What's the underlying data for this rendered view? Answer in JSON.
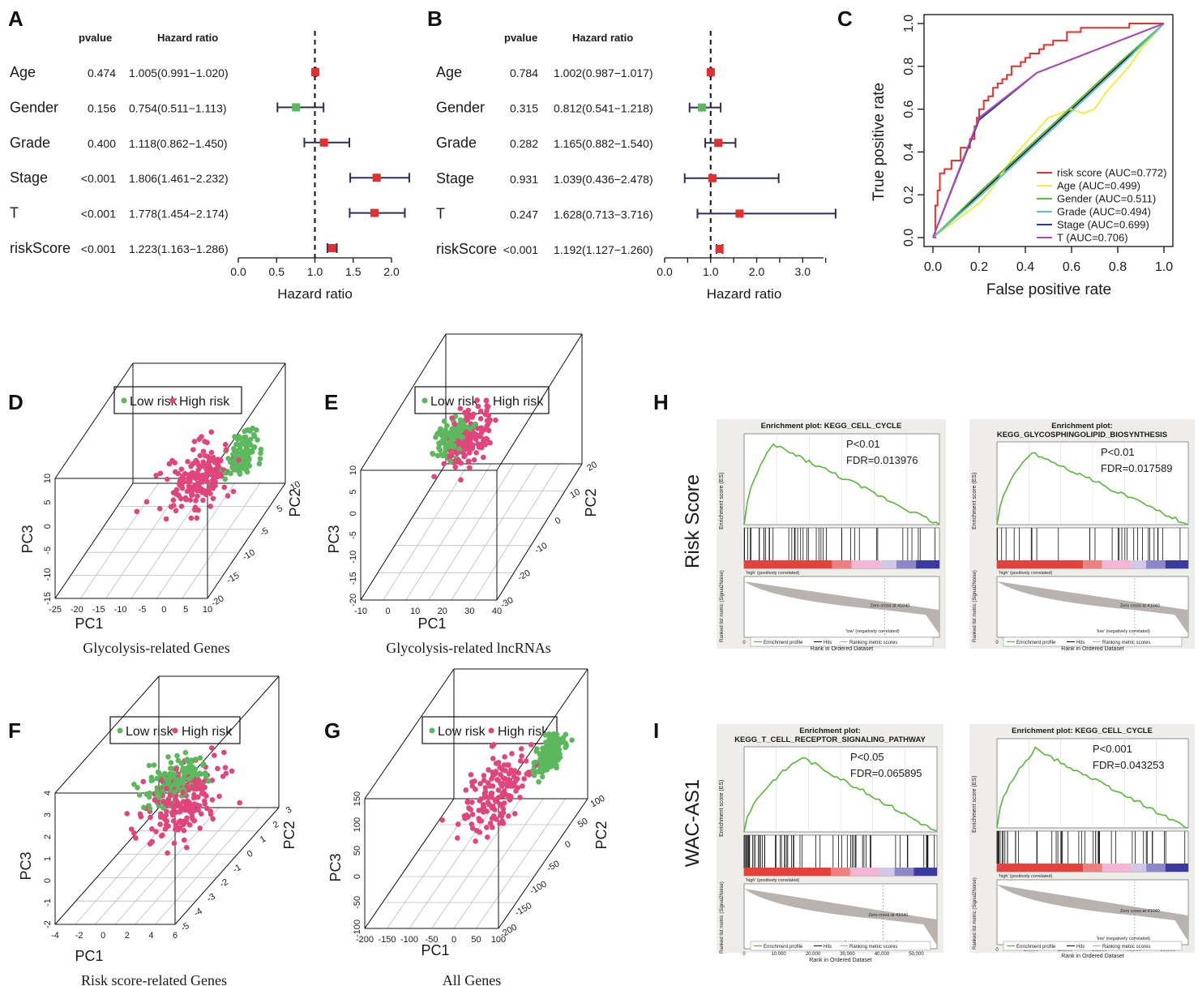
{
  "panel_letters": {
    "A": "A",
    "B": "B",
    "C": "C",
    "D": "D",
    "E": "E",
    "F": "F",
    "G": "G",
    "H": "H",
    "I": "I"
  },
  "colors": {
    "red": "#e03030",
    "green": "#5cb85c",
    "navy": "#2e2e5e",
    "pink": "#e0457b",
    "gsea_green": "#55b935"
  },
  "chart_data": [
    {
      "id": "A",
      "type": "forest",
      "xlabel": "Hazard ratio",
      "col_pvalue": "pvalue",
      "col_hr": "Hazard ratio",
      "xlim": [
        0,
        2.0
      ],
      "ticks": [
        "0.0",
        "0.5",
        "1.0",
        "1.5",
        "2.0"
      ],
      "tick_values": [
        0,
        0.5,
        1.0,
        1.5,
        2.0
      ],
      "rows": [
        {
          "name": "Age",
          "pvalue": "0.474",
          "hr_text": "1.005(0.991−1.020)",
          "hr": 1.005,
          "lo": 0.991,
          "hi": 1.02,
          "color": "#e03030"
        },
        {
          "name": "Gender",
          "pvalue": "0.156",
          "hr_text": "0.754(0.511−1.113)",
          "hr": 0.754,
          "lo": 0.511,
          "hi": 1.113,
          "color": "#5cb85c"
        },
        {
          "name": "Grade",
          "pvalue": "0.400",
          "hr_text": "1.118(0.862−1.450)",
          "hr": 1.118,
          "lo": 0.862,
          "hi": 1.45,
          "color": "#e03030"
        },
        {
          "name": "Stage",
          "pvalue": "<0.001",
          "hr_text": "1.806(1.461−2.232)",
          "hr": 1.806,
          "lo": 1.461,
          "hi": 2.232,
          "color": "#e03030"
        },
        {
          "name": "T",
          "pvalue": "<0.001",
          "hr_text": "1.778(1.454−2.174)",
          "hr": 1.778,
          "lo": 1.454,
          "hi": 2.174,
          "color": "#e03030"
        },
        {
          "name": "riskScore",
          "pvalue": "<0.001",
          "hr_text": "1.223(1.163−1.286)",
          "hr": 1.223,
          "lo": 1.163,
          "hi": 1.286,
          "color": "#e03030"
        }
      ]
    },
    {
      "id": "B",
      "type": "forest",
      "xlabel": "Hazard ratio",
      "col_pvalue": "pvalue",
      "col_hr": "Hazard ratio",
      "xlim": [
        0,
        3.7
      ],
      "ticks": [
        "0.0",
        "1.0",
        "2.0",
        "3.0"
      ],
      "tick_values": [
        0,
        1.0,
        2.0,
        3.0
      ],
      "rows": [
        {
          "name": "Age",
          "pvalue": "0.784",
          "hr_text": "1.002(0.987−1.017)",
          "hr": 1.002,
          "lo": 0.987,
          "hi": 1.017,
          "color": "#e03030"
        },
        {
          "name": "Gender",
          "pvalue": "0.315",
          "hr_text": "0.812(0.541−1.218)",
          "hr": 0.812,
          "lo": 0.541,
          "hi": 1.218,
          "color": "#5cb85c"
        },
        {
          "name": "Grade",
          "pvalue": "0.282",
          "hr_text": "1.165(0.882−1.540)",
          "hr": 1.165,
          "lo": 0.882,
          "hi": 1.54,
          "color": "#e03030"
        },
        {
          "name": "Stage",
          "pvalue": "0.931",
          "hr_text": "1.039(0.436−2.478)",
          "hr": 1.039,
          "lo": 0.436,
          "hi": 2.478,
          "color": "#e03030"
        },
        {
          "name": "T",
          "pvalue": "0.247",
          "hr_text": "1.628(0.713−3.716)",
          "hr": 1.628,
          "lo": 0.713,
          "hi": 3.716,
          "color": "#e03030"
        },
        {
          "name": "riskScore",
          "pvalue": "<0.001",
          "hr_text": "1.192(1.127−1.260)",
          "hr": 1.192,
          "lo": 1.127,
          "hi": 1.26,
          "color": "#e03030"
        }
      ]
    },
    {
      "id": "C",
      "type": "line",
      "title": "",
      "xlabel": "False positive rate",
      "ylabel": "True positive rate",
      "xlim": [
        0,
        1
      ],
      "ylim": [
        0,
        1
      ],
      "xticks": [
        "0.0",
        "0.2",
        "0.4",
        "0.6",
        "0.8",
        "1.0"
      ],
      "yticks": [
        "0.0",
        "0.2",
        "0.4",
        "0.6",
        "0.8",
        "1.0"
      ],
      "series": [
        {
          "name": "risk score (AUC=0.772)",
          "color": "#e8302a",
          "x": [
            0,
            0.01,
            0.02,
            0.03,
            0.05,
            0.06,
            0.08,
            0.1,
            0.12,
            0.14,
            0.16,
            0.18,
            0.19,
            0.2,
            0.22,
            0.24,
            0.26,
            0.28,
            0.3,
            0.32,
            0.34,
            0.36,
            0.38,
            0.4,
            0.42,
            0.44,
            0.46,
            0.48,
            0.5,
            0.52,
            0.55,
            0.58,
            0.6,
            0.64,
            0.68,
            0.72,
            0.76,
            0.8,
            0.85,
            0.9,
            0.95,
            1.0
          ],
          "y": [
            0,
            0.15,
            0.22,
            0.3,
            0.32,
            0.32,
            0.36,
            0.36,
            0.42,
            0.42,
            0.46,
            0.52,
            0.56,
            0.6,
            0.64,
            0.66,
            0.7,
            0.72,
            0.74,
            0.76,
            0.8,
            0.8,
            0.82,
            0.84,
            0.86,
            0.86,
            0.88,
            0.9,
            0.9,
            0.92,
            0.92,
            0.96,
            0.96,
            0.98,
            0.98,
            0.98,
            0.98,
            0.98,
            1.0,
            1.0,
            1.0,
            1.0
          ]
        },
        {
          "name": "Age (AUC=0.499)",
          "color": "#eeee44",
          "x": [
            0,
            0.05,
            0.1,
            0.15,
            0.2,
            0.25,
            0.3,
            0.35,
            0.4,
            0.45,
            0.5,
            0.55,
            0.6,
            0.65,
            0.7,
            0.75,
            0.8,
            0.85,
            0.9,
            0.95,
            1.0
          ],
          "y": [
            0,
            0.04,
            0.08,
            0.12,
            0.16,
            0.22,
            0.3,
            0.38,
            0.44,
            0.5,
            0.56,
            0.58,
            0.6,
            0.58,
            0.6,
            0.68,
            0.74,
            0.8,
            0.88,
            0.94,
            1.0
          ]
        },
        {
          "name": "Gender (AUC=0.511)",
          "color": "#5cb83c",
          "x": [
            0,
            0.2,
            0.5,
            0.8,
            1.0
          ],
          "y": [
            0,
            0.21,
            0.51,
            0.81,
            1.0
          ]
        },
        {
          "name": "Grade (AUC=0.494)",
          "color": "#5bc0d8",
          "x": [
            0,
            0.2,
            0.5,
            0.8,
            1.0
          ],
          "y": [
            0,
            0.19,
            0.49,
            0.79,
            1.0
          ]
        },
        {
          "name": "Stage (AUC=0.699)",
          "color": "#2a3a9a",
          "x": [
            0,
            0.2,
            0.45,
            1.0
          ],
          "y": [
            0,
            0.55,
            0.77,
            1.0
          ]
        },
        {
          "name": "T (AUC=0.706)",
          "color": "#b04ab0",
          "x": [
            0,
            0.2,
            0.45,
            1.0
          ],
          "y": [
            0,
            0.56,
            0.77,
            1.0
          ]
        }
      ]
    },
    {
      "id": "D",
      "type": "scatter3d",
      "caption": "Glycolysis-related Genes",
      "legend": [
        "Low risk",
        "High risk"
      ],
      "axis_x": "PC1",
      "axis_y": "PC2",
      "axis_z": "PC3",
      "x_ticks": [
        "-25",
        "-20",
        "-15",
        "-10",
        "-5",
        "0",
        "5",
        "10"
      ],
      "y_ticks": [
        "-20",
        "-15",
        "-10",
        "-5",
        "5",
        "10"
      ],
      "z_ticks": [
        "10",
        "5",
        "0",
        "-5",
        "-10",
        "-15"
      ]
    },
    {
      "id": "E",
      "type": "scatter3d",
      "caption": "Glycolysis-related lncRNAs",
      "legend": [
        "Low risk",
        "High risk"
      ],
      "axis_x": "PC1",
      "axis_y": "PC2",
      "axis_z": "PC3",
      "x_ticks": [
        "-10",
        "0",
        "10",
        "20",
        "30",
        "40"
      ],
      "y_ticks": [
        "-30",
        "-20",
        "-10",
        "0",
        "10",
        "20"
      ],
      "z_ticks": [
        "10",
        "5",
        "0",
        "-5",
        "-10",
        "-15",
        "-20"
      ]
    },
    {
      "id": "F",
      "type": "scatter3d",
      "caption": "Risk score-related Genes",
      "legend": [
        "Low risk",
        "High risk"
      ],
      "axis_x": "PC1",
      "axis_y": "PC2",
      "axis_z": "PC3",
      "x_ticks": [
        "-4",
        "-2",
        "0",
        "2",
        "4",
        "6"
      ],
      "y_ticks": [
        "-5",
        "-4",
        "-3",
        "-2",
        "-1",
        "0",
        "1",
        "2",
        "3"
      ],
      "z_ticks": [
        "4",
        "3",
        "2",
        "1",
        "0",
        "-1",
        "-2"
      ]
    },
    {
      "id": "G",
      "type": "scatter3d",
      "caption": "All Genes",
      "legend": [
        "Low risk",
        "High risk"
      ],
      "axis_x": "PC1",
      "axis_y": "PC2",
      "axis_z": "PC3",
      "x_ticks": [
        "-200",
        "-150",
        "-100",
        "-50",
        "0",
        "50",
        "100"
      ],
      "y_ticks": [
        "-200",
        "-150",
        "-100",
        "-50",
        "0",
        "50",
        "100"
      ],
      "z_ticks": [
        "150",
        "100",
        "50",
        "0",
        "-50",
        "-100"
      ]
    },
    {
      "id": "H",
      "row_label": "Risk Score",
      "type": "gsea",
      "plots": [
        {
          "title": "Enrichment plot: KEGG_CELL_CYCLE",
          "p": "P<0.01",
          "fdr": "FDR=0.013976"
        },
        {
          "title": "Enrichment plot:\nKEGG_GLYCOSPHINGOLIPID_BIOSYNTHESIS",
          "p": "P<0.01",
          "fdr": "FDR=0.017589"
        }
      ]
    },
    {
      "id": "I",
      "row_label": "WAC-AS1",
      "type": "gsea",
      "plots": [
        {
          "title": "Enrichment plot:\nKEGG_T_CELL_RECEPTOR_SIGNALING_PATHWAY",
          "p": "P<0.05",
          "fdr": "FDR=0.065895"
        },
        {
          "title": "Enrichment plot: KEGG_CELL_CYCLE",
          "p": "P<0.001",
          "fdr": "FDR=0.043253"
        }
      ]
    }
  ],
  "gsea_common": {
    "es_label": "Enrichment score (ES)",
    "rank_label": "Ranked list metric (Signal2Noise)",
    "x_label": "Rank in Ordered Dataset",
    "x_ticks": [
      "0",
      "10,000",
      "20,000",
      "30,000",
      "40,000",
      "50,000"
    ],
    "high_label": "'high' (positively correlated)",
    "low_label": "'low' (negatively correlated)",
    "zero_cross": "Zero cross at 41040",
    "zero_cross_alt": "Zero cross at 41039",
    "legend": [
      "Enrichment profile",
      "Hits",
      "Ranking metric scores"
    ]
  }
}
